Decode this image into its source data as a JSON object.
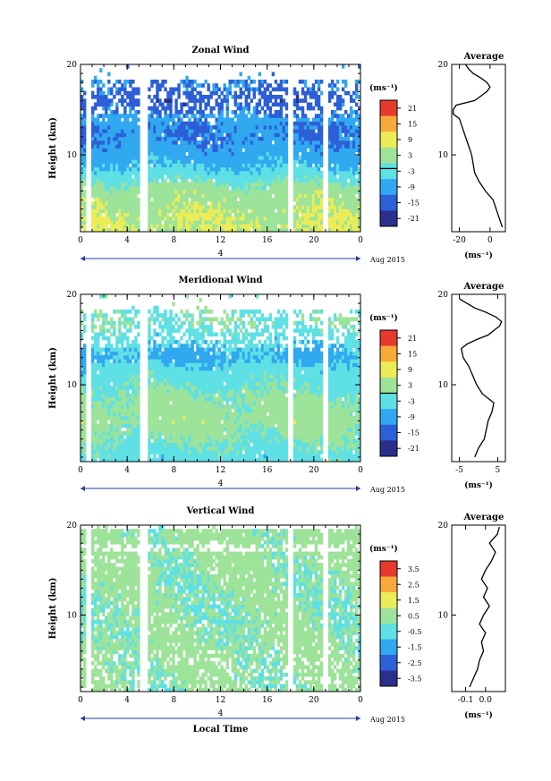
{
  "chart_data": [
    {
      "type": "heatmap",
      "title": "Zonal Wind",
      "ylabel": "Height (km)",
      "xlabel": "",
      "x_ticks": [
        "0",
        "4",
        "8",
        "12",
        "16",
        "20",
        "0"
      ],
      "y_ticks": [
        "10",
        "20"
      ],
      "xlim": [
        0,
        24
      ],
      "ylim": [
        1.5,
        20
      ],
      "date_number": "4",
      "date_label": "Aug 2015",
      "colorbar": {
        "unit": "(ms⁻¹)",
        "ticks": [
          "21",
          "15",
          "9",
          "3",
          "-3",
          "-9",
          "-15",
          "-21"
        ],
        "range": [
          -24,
          24
        ],
        "contour_marker": -2
      },
      "data_gaps_hours": [
        [
          0.5,
          0.9
        ],
        [
          5.0,
          5.7
        ],
        [
          17.7,
          18.3
        ],
        [
          20.8,
          21.3
        ]
      ],
      "approx_profile": {
        "height_km": [
          2,
          4,
          6,
          7,
          8,
          10,
          12,
          13,
          14,
          15,
          16,
          17,
          18
        ],
        "wind": [
          6,
          5,
          3,
          0,
          -4,
          -9,
          -12,
          -12,
          -10,
          -14,
          -16,
          -14,
          -12
        ]
      },
      "average": {
        "title": "Average",
        "xlabel": "(ms⁻¹)",
        "x_ticks": [
          "-20",
          "0"
        ],
        "y_ticks": [
          "10",
          "20"
        ],
        "xlim": [
          -25,
          10
        ],
        "height_km": [
          2,
          3,
          4,
          5,
          6,
          7,
          8,
          9,
          10,
          11,
          12,
          13,
          14,
          14.5,
          15,
          15.5,
          16,
          16.5,
          17,
          17.5,
          18,
          18.5,
          19,
          19.5,
          20
        ],
        "values": [
          8,
          6,
          4,
          2,
          -3,
          -7,
          -10,
          -11,
          -12,
          -14,
          -16,
          -18,
          -20,
          -24,
          -24,
          -22,
          -10,
          -6,
          -2,
          0,
          -2,
          -6,
          -11,
          -14,
          -16
        ]
      }
    },
    {
      "type": "heatmap",
      "title": "Meridional Wind",
      "ylabel": "Height (km)",
      "xlabel": "",
      "x_ticks": [
        "0",
        "4",
        "8",
        "12",
        "16",
        "20",
        "0"
      ],
      "y_ticks": [
        "10",
        "20"
      ],
      "xlim": [
        0,
        24
      ],
      "ylim": [
        1.5,
        20
      ],
      "date_number": "4",
      "date_label": "Aug 2015",
      "colorbar": {
        "unit": "(ms⁻¹)",
        "ticks": [
          "21",
          "15",
          "9",
          "3",
          "-3",
          "-9",
          "-15",
          "-21"
        ],
        "range": [
          -24,
          24
        ],
        "contour_marker": 0
      },
      "data_gaps_hours": [
        [
          0.5,
          0.9
        ],
        [
          5.0,
          5.7
        ],
        [
          17.7,
          18.3
        ],
        [
          20.8,
          21.3
        ]
      ],
      "approx_profile": {
        "height_km": [
          2,
          4,
          6,
          8,
          10,
          12,
          13,
          14,
          16,
          17,
          18
        ],
        "wind": [
          -3,
          0,
          3,
          2,
          -1,
          -4,
          -8,
          -6,
          -2,
          0,
          -1
        ]
      },
      "average": {
        "title": "Average",
        "xlabel": "(ms⁻¹)",
        "x_ticks": [
          "-5",
          "5"
        ],
        "y_ticks": [
          "10",
          "20"
        ],
        "xlim": [
          -7,
          7
        ],
        "height_km": [
          2,
          3,
          4,
          5,
          6,
          7,
          8,
          9,
          10,
          11,
          12,
          13,
          14,
          14.5,
          15,
          15.5,
          16,
          16.5,
          17,
          17.5,
          18,
          18.5,
          19,
          19.5
        ],
        "values": [
          -1,
          0,
          1.5,
          2,
          2.5,
          3.5,
          4,
          1,
          -0.5,
          -1.5,
          -2.5,
          -4,
          -4.5,
          -3,
          -0.5,
          2.5,
          4,
          5.5,
          6,
          4.5,
          2,
          -1,
          -3,
          -5
        ]
      }
    },
    {
      "type": "heatmap",
      "title": "Vertical Wind",
      "ylabel": "Height (km)",
      "xlabel": "Local Time",
      "x_ticks": [
        "0",
        "4",
        "8",
        "12",
        "16",
        "20",
        "0"
      ],
      "y_ticks": [
        "10",
        "20"
      ],
      "xlim": [
        0,
        24
      ],
      "ylim": [
        1.5,
        20
      ],
      "date_number": "4",
      "date_label": "Aug 2015",
      "colorbar": {
        "unit": "(ms⁻¹)",
        "ticks": [
          "3.5",
          "2.5",
          "1.5",
          "0.5",
          "-0.5",
          "-1.5",
          "-2.5",
          "-3.5"
        ],
        "range": [
          -4,
          4
        ]
      },
      "data_gaps_hours": [
        [
          0.5,
          0.9
        ],
        [
          5.0,
          5.7
        ],
        [
          17.7,
          18.3
        ],
        [
          20.8,
          21.3
        ]
      ],
      "approx_profile": {
        "height_km": [
          2,
          6,
          10,
          14,
          18
        ],
        "wind": [
          0.2,
          0.3,
          0.1,
          0.2,
          0.4
        ]
      },
      "average": {
        "title": "Average",
        "xlabel": "(ms⁻¹)",
        "x_ticks": [
          "-0.1",
          "0.0"
        ],
        "y_ticks": [
          "10",
          "20"
        ],
        "xlim": [
          -0.17,
          0.1
        ],
        "height_km": [
          2,
          3,
          4,
          5,
          6,
          7,
          8,
          9,
          10,
          11,
          12,
          13,
          14,
          15,
          16,
          17,
          18,
          19,
          19.8
        ],
        "values": [
          -0.08,
          -0.06,
          -0.04,
          -0.03,
          -0.01,
          -0.02,
          0.0,
          -0.03,
          -0.01,
          0.02,
          -0.01,
          0.01,
          -0.02,
          0.0,
          0.03,
          0.05,
          0.02,
          0.06,
          0.07
        ]
      }
    }
  ]
}
